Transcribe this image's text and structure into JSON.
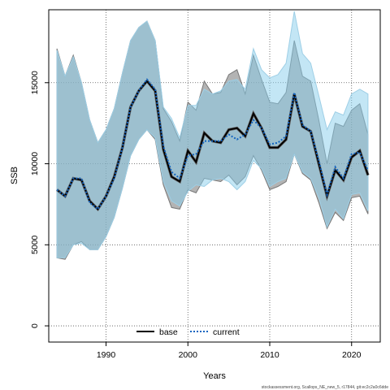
{
  "chart_data": {
    "type": "line",
    "xlabel": "Years",
    "ylabel": "SSB",
    "xlim": [
      1983,
      2023.5
    ],
    "ylim": [
      -1000,
      19500
    ],
    "xticks": [
      1990,
      2000,
      2010,
      2020
    ],
    "yticks": [
      0,
      5000,
      10000,
      15000
    ],
    "grid": true,
    "legend_position": "bottom-center",
    "footer": "stockassessment.org, Scallops_NE_new_5, r17844, git:ec2c2a0c6dde",
    "colors": {
      "base": "#000000",
      "current": "#1565c0",
      "base_band": "#808080",
      "current_band": "#87ceeb"
    },
    "x": [
      1984,
      1985,
      1986,
      1987,
      1988,
      1989,
      1990,
      1991,
      1992,
      1993,
      1994,
      1995,
      1996,
      1997,
      1998,
      1999,
      2000,
      2001,
      2002,
      2003,
      2004,
      2005,
      2006,
      2007,
      2008,
      2009,
      2010,
      2011,
      2012,
      2013,
      2014,
      2015,
      2016,
      2017,
      2018,
      2019,
      2020,
      2021,
      2022
    ],
    "series": [
      {
        "name": "base",
        "values": [
          8400,
          8000,
          9100,
          9000,
          7700,
          7200,
          8000,
          9200,
          11000,
          13500,
          14500,
          15100,
          14500,
          10900,
          9200,
          8900,
          10800,
          10100,
          11900,
          11400,
          11300,
          12100,
          12200,
          11700,
          13100,
          12200,
          11000,
          11000,
          11500,
          14300,
          12300,
          12000,
          10000,
          8000,
          9600,
          9000,
          10400,
          10800,
          9300
        ],
        "lower": [
          4200,
          4100,
          5000,
          5200,
          4700,
          4700,
          5500,
          6700,
          8500,
          10500,
          11500,
          12100,
          11500,
          8700,
          7300,
          7200,
          8400,
          8200,
          9100,
          9000,
          8900,
          9300,
          8700,
          9200,
          10500,
          9600,
          8400,
          8600,
          8900,
          10600,
          9400,
          9000,
          7600,
          6000,
          7000,
          6500,
          7900,
          8000,
          6900
        ],
        "upper": [
          17100,
          15400,
          16700,
          15000,
          12700,
          11300,
          12100,
          13400,
          15600,
          17600,
          18400,
          18800,
          17600,
          13400,
          12600,
          11400,
          13800,
          13300,
          15100,
          14300,
          14400,
          15500,
          15800,
          14300,
          16700,
          15200,
          13800,
          13700,
          14400,
          17600,
          15400,
          15100,
          12700,
          10000,
          12500,
          12300,
          13300,
          13700,
          11800
        ]
      },
      {
        "name": "current",
        "values": [
          8400,
          8000,
          9100,
          9100,
          7600,
          7200,
          8000,
          9100,
          11000,
          13500,
          14500,
          15200,
          14600,
          11100,
          9500,
          9100,
          10500,
          10600,
          11400,
          11400,
          11400,
          11800,
          11500,
          11800,
          12700,
          12200,
          11200,
          11300,
          11700,
          14400,
          12400,
          12000,
          10200,
          8100,
          9800,
          9100,
          10600,
          10700,
          9600
        ],
        "lower": [
          4200,
          4200,
          5000,
          5100,
          4700,
          4700,
          5500,
          6700,
          8500,
          10500,
          11500,
          12100,
          11600,
          8900,
          7700,
          7400,
          8300,
          8700,
          8600,
          9000,
          9100,
          8900,
          8400,
          8900,
          10200,
          9700,
          8600,
          8900,
          9100,
          10600,
          9500,
          9100,
          7900,
          6100,
          7200,
          6600,
          8100,
          8200,
          7100
        ],
        "upper": [
          17000,
          15400,
          16600,
          15000,
          12700,
          11300,
          12100,
          13400,
          15600,
          17600,
          18400,
          18800,
          17600,
          13500,
          12800,
          11600,
          13600,
          13600,
          14600,
          14300,
          14500,
          15100,
          15200,
          14600,
          17100,
          15800,
          15300,
          15500,
          16200,
          19400,
          16800,
          16200,
          14200,
          12100,
          13200,
          13000,
          14300,
          14600,
          14300
        ]
      }
    ]
  }
}
